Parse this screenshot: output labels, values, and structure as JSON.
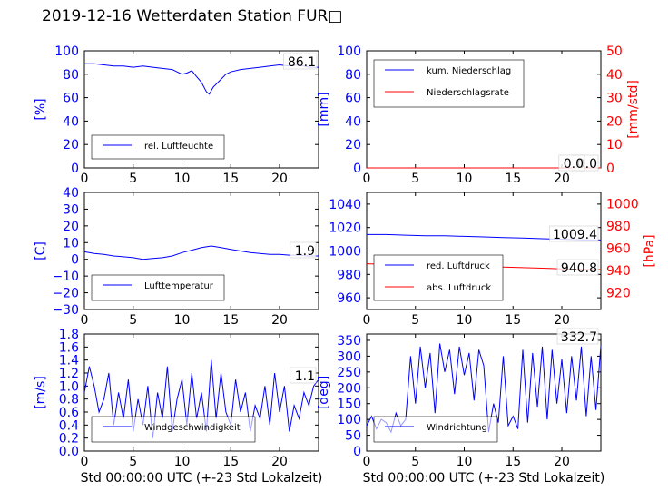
{
  "figure": {
    "title": "2019-12-16 Wetterdaten Station FUR□",
    "xlabel": "Std 00:00:00 UTC (+-23 Std Lokalzeit)"
  },
  "colors": {
    "blue": "#0000ff",
    "red": "#ff0000",
    "axis": "#000000"
  },
  "chart_data": [
    {
      "type": "line",
      "ylabel": "[%]",
      "xlim": [
        0,
        24
      ],
      "ylim": [
        0,
        100
      ],
      "xticks": [
        "0",
        "5",
        "10",
        "15",
        "20"
      ],
      "yticks": [
        "0",
        "20",
        "40",
        "60",
        "80",
        "100"
      ],
      "legend": {
        "position": "lower-left",
        "entries": [
          "rel. Luftfeuchte"
        ]
      },
      "value_label": "86.1",
      "series": [
        {
          "name": "rel. Luftfeuchte",
          "color": "#0000ff",
          "x": [
            0,
            1,
            2,
            3,
            4,
            5,
            6,
            7,
            8,
            9,
            10,
            10.5,
            11,
            11.5,
            12,
            12.5,
            12.8,
            13.2,
            13.8,
            14.5,
            15,
            16,
            17,
            18,
            19,
            20,
            21,
            22,
            23,
            24
          ],
          "y": [
            89,
            89,
            88,
            87,
            87,
            86,
            87,
            86,
            85,
            84,
            80,
            81,
            83,
            78,
            73,
            65,
            63,
            69,
            74,
            80,
            82,
            84,
            85,
            86,
            87,
            88,
            87,
            88,
            86,
            86
          ]
        }
      ]
    },
    {
      "type": "line",
      "ylabel": "[mm]",
      "y2label": "[mm/std]",
      "xlim": [
        0,
        24
      ],
      "ylim": [
        0,
        100
      ],
      "y2lim": [
        0,
        50
      ],
      "xticks": [
        "0",
        "5",
        "10",
        "15",
        "20"
      ],
      "yticks": [
        "0",
        "20",
        "40",
        "60",
        "80",
        "100"
      ],
      "y2ticks": [
        "0",
        "10",
        "20",
        "30",
        "40",
        "50"
      ],
      "legend": {
        "position": "upper-left",
        "entries": [
          "kum. Niederschlag",
          "Niederschlagsrate"
        ]
      },
      "value_label": "0.0",
      "value_label_2": "0.0",
      "series": [
        {
          "name": "kum. Niederschlag",
          "color": "#0000ff",
          "x": [
            0,
            24
          ],
          "y": [
            0,
            0
          ]
        },
        {
          "name": "Niederschlagsrate",
          "color": "#ff0000",
          "axis": "right",
          "x": [
            0,
            24
          ],
          "y": [
            0,
            0
          ]
        }
      ]
    },
    {
      "type": "line",
      "ylabel": "[C]",
      "xlim": [
        0,
        24
      ],
      "ylim": [
        -30,
        40
      ],
      "xticks": [
        "0",
        "5",
        "10",
        "15",
        "20"
      ],
      "yticks": [
        "−30",
        "−20",
        "−10",
        "0",
        "10",
        "20",
        "30",
        "40"
      ],
      "legend": {
        "position": "lower-left",
        "entries": [
          "Lufttemperatur"
        ]
      },
      "value_label": "1.9",
      "series": [
        {
          "name": "Lufttemperatur",
          "color": "#0000ff",
          "x": [
            0,
            1,
            2,
            3,
            4,
            5,
            6,
            7,
            8,
            9,
            10,
            11,
            12,
            13,
            14,
            15,
            16,
            17,
            18,
            19,
            20,
            21,
            22,
            23,
            24
          ],
          "y": [
            4.5,
            3.5,
            3.0,
            2.0,
            1.5,
            1.0,
            0.0,
            0.5,
            1.0,
            2.0,
            4.0,
            5.5,
            7.0,
            8.0,
            7.0,
            6.0,
            5.0,
            4.0,
            3.5,
            3.0,
            3.0,
            2.5,
            2.5,
            2.0,
            2.0
          ]
        }
      ]
    },
    {
      "type": "line",
      "y2label": "[hPa]",
      "xlim": [
        0,
        24
      ],
      "ylim": [
        950,
        1050
      ],
      "y2lim": [
        905,
        1010
      ],
      "xticks": [
        "0",
        "5",
        "10",
        "15",
        "20"
      ],
      "yticks": [
        "960",
        "980",
        "1000",
        "1020",
        "1040"
      ],
      "y2ticks": [
        "920",
        "940",
        "960",
        "980",
        "1000"
      ],
      "legend": {
        "position": "lower-left",
        "entries": [
          "red. Luftdruck",
          "abs. Luftdruck"
        ]
      },
      "value_label": "1009.4",
      "value_label_2": "940.8",
      "series": [
        {
          "name": "red. Luftdruck",
          "color": "#0000ff",
          "x": [
            0,
            2,
            4,
            6,
            8,
            10,
            12,
            14,
            16,
            18,
            20,
            22,
            24
          ],
          "y": [
            1014,
            1014,
            1013.5,
            1013,
            1013,
            1012.5,
            1012,
            1011.5,
            1011,
            1010.5,
            1010,
            1009.5,
            1009.4
          ]
        },
        {
          "name": "abs. Luftdruck",
          "color": "#ff0000",
          "axis": "right",
          "x": [
            0,
            2,
            4,
            6,
            8,
            10,
            12,
            14,
            16,
            18,
            20,
            22,
            24
          ],
          "y": [
            946,
            945.5,
            945,
            944.5,
            944,
            944,
            943.5,
            943,
            942.5,
            942,
            941.5,
            941,
            940.8
          ]
        }
      ]
    },
    {
      "type": "line",
      "ylabel": "[m/s]",
      "xlim": [
        0,
        24
      ],
      "ylim": [
        0,
        1.8
      ],
      "xticks": [
        "0",
        "5",
        "10",
        "15",
        "20"
      ],
      "yticks": [
        "0.0",
        "0.2",
        "0.4",
        "0.6",
        "0.8",
        "1.0",
        "1.2",
        "1.4",
        "1.6",
        "1.8"
      ],
      "legend": {
        "position": "lower-center",
        "entries": [
          "Windgeschwindigkeit"
        ]
      },
      "value_label": "1.1",
      "series": [
        {
          "name": "Windgeschwindigkeit",
          "color": "#0000ff",
          "x": [
            0,
            0.5,
            1,
            1.5,
            2,
            2.5,
            3,
            3.5,
            4,
            4.5,
            5,
            5.5,
            6,
            6.5,
            7,
            7.5,
            8,
            8.5,
            9,
            9.5,
            10,
            10.5,
            11,
            11.5,
            12,
            12.5,
            13,
            13.5,
            14,
            14.5,
            15,
            15.5,
            16,
            16.5,
            17,
            17.5,
            18,
            18.5,
            19,
            19.5,
            20,
            20.5,
            21,
            21.5,
            22,
            22.5,
            23,
            23.5,
            24
          ],
          "y": [
            0.9,
            1.3,
            1.0,
            0.6,
            0.8,
            1.2,
            0.4,
            0.9,
            0.5,
            1.1,
            0.3,
            0.8,
            0.4,
            1.0,
            0.2,
            0.9,
            0.5,
            1.3,
            0.3,
            0.8,
            1.1,
            0.4,
            1.2,
            0.5,
            0.9,
            0.3,
            1.4,
            0.5,
            1.2,
            0.6,
            0.4,
            1.1,
            0.6,
            0.9,
            0.3,
            0.7,
            0.5,
            1.0,
            0.4,
            1.2,
            0.6,
            1.0,
            0.3,
            0.7,
            0.5,
            0.9,
            0.7,
            1.0,
            1.1
          ]
        }
      ]
    },
    {
      "type": "line",
      "ylabel": "[deg]",
      "xlim": [
        0,
        24
      ],
      "ylim": [
        0,
        370
      ],
      "xticks": [
        "0",
        "5",
        "10",
        "15",
        "20"
      ],
      "yticks": [
        "0",
        "50",
        "100",
        "150",
        "200",
        "250",
        "300",
        "350"
      ],
      "legend": {
        "position": "lower-center",
        "entries": [
          "Windrichtung"
        ]
      },
      "value_label": "332.7",
      "series": [
        {
          "name": "Windrichtung",
          "color": "#0000ff",
          "x": [
            0,
            0.5,
            1,
            1.5,
            2,
            2.5,
            3,
            3.5,
            4,
            4.5,
            5,
            5.5,
            6,
            6.5,
            7,
            7.5,
            8,
            8.5,
            9,
            9.5,
            10,
            10.5,
            11,
            11.5,
            12,
            12.5,
            13,
            13.5,
            14,
            14.5,
            15,
            15.5,
            16,
            16.5,
            17,
            17.5,
            18,
            18.5,
            19,
            19.5,
            20,
            20.5,
            21,
            21.5,
            22,
            22.5,
            23,
            23.5,
            24
          ],
          "y": [
            80,
            110,
            70,
            100,
            90,
            60,
            120,
            80,
            100,
            300,
            150,
            330,
            200,
            310,
            120,
            340,
            250,
            320,
            180,
            330,
            240,
            310,
            160,
            320,
            270,
            60,
            150,
            90,
            300,
            80,
            110,
            70,
            320,
            90,
            310,
            140,
            330,
            100,
            320,
            150,
            290,
            120,
            300,
            160,
            330,
            110,
            300,
            130,
            333
          ]
        }
      ]
    }
  ]
}
